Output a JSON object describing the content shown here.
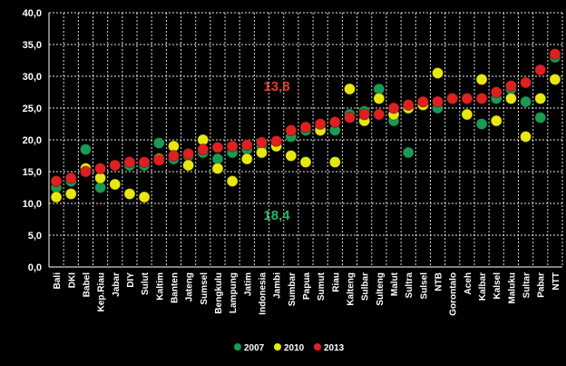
{
  "colors": {
    "background": "#000000",
    "series_2007": "#1a9a55",
    "series_2010": "#e8e811",
    "series_2013": "#e02020",
    "grid": "#ffffff",
    "annotation_2013": "#e63b2e",
    "annotation_2007": "#25b86a"
  },
  "chart_data": {
    "type": "scatter",
    "ylim": [
      0,
      40
    ],
    "yticks": [
      "0,0",
      "5,0",
      "10,0",
      "15,0",
      "20,0",
      "25,0",
      "30,0",
      "35,0",
      "40,0"
    ],
    "grid": true,
    "legend_position": "bottom",
    "categories": [
      "Bali",
      "DKI",
      "Babel",
      "Kep.Riau",
      "Jabar",
      "DIY",
      "Sulut",
      "Kaltim",
      "Banten",
      "Jateng",
      "Sumsel",
      "Bengkulu",
      "Lampung",
      "Jatim",
      "Indonesia",
      "Jambi",
      "Sumbar",
      "Papua",
      "Sumut",
      "Riau",
      "Kalteng",
      "Sulbar",
      "Sulteng",
      "Malut",
      "Sultra",
      "Sulsel",
      "NTB",
      "Gorontalo",
      "Aceh",
      "Kalbar",
      "Kalsel",
      "Maluku",
      "Sultar",
      "Pabar",
      "NTT"
    ],
    "series": [
      {
        "name": "2007",
        "values": [
          12.5,
          13.5,
          18.5,
          12.5,
          16,
          16,
          16,
          19.5,
          17,
          17.5,
          18,
          17,
          18,
          18.5,
          19,
          19.5,
          20.5,
          21.5,
          22,
          21.5,
          24,
          24.5,
          28,
          23,
          18,
          25.5,
          25,
          26.5,
          26.5,
          22.5,
          26.5,
          28,
          26,
          23.5,
          33
        ]
      },
      {
        "name": "2010",
        "values": [
          11,
          11.5,
          15.5,
          14,
          13,
          11.5,
          11,
          17,
          19,
          16,
          20,
          15.5,
          13.5,
          17,
          18,
          19,
          17.5,
          16.5,
          21.5,
          16.5,
          28,
          23,
          26.5,
          24,
          25,
          25.5,
          30.5,
          26.5,
          24,
          29.5,
          23,
          26.5,
          20.5,
          26.5,
          29.5
        ]
      },
      {
        "name": "2013",
        "values": [
          13.5,
          14,
          15,
          15.5,
          16,
          16.5,
          16.5,
          16.8,
          17.5,
          17.8,
          18.5,
          18.8,
          19,
          19.2,
          19.6,
          19.8,
          21.5,
          22,
          22.5,
          22.8,
          23.5,
          24,
          24,
          25,
          25.5,
          26,
          26,
          26.5,
          26.5,
          26.5,
          27.5,
          28.5,
          29,
          31,
          33.5
        ]
      }
    ],
    "annotations": [
      "13,8",
      "18,4"
    ],
    "legend": [
      "2007",
      "2010",
      "2013"
    ]
  }
}
